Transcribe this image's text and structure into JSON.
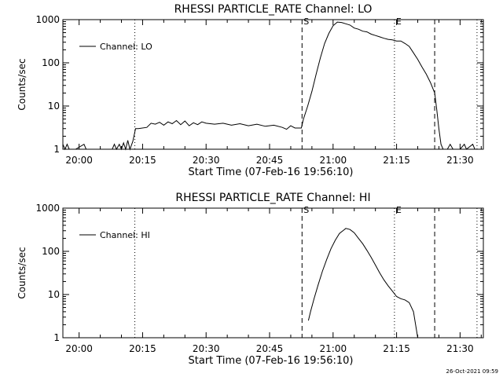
{
  "footer": {
    "date": "26-Oct-2021 09:59"
  },
  "chart_data": [
    {
      "type": "line",
      "title": "RHESSI PARTICLE_RATE Channel: LO",
      "xlabel": "Start Time (07-Feb-16 19:56:10)",
      "ylabel": "Counts/sec",
      "yscale": "log",
      "xlim": [
        "19:56:10",
        "21:35:30"
      ],
      "ylim": [
        1,
        1000
      ],
      "x_ticks": [
        "20:00",
        "20:15",
        "20:30",
        "20:45",
        "21:00",
        "21:15",
        "21:30"
      ],
      "y_ticks": [
        "1",
        "10",
        "100",
        "1000"
      ],
      "legend": {
        "position": "top-left",
        "entries": [
          "Channel: LO"
        ]
      },
      "markers": [
        {
          "time": "20:13:10",
          "style": "dotted",
          "label": ""
        },
        {
          "time": "20:52:40",
          "style": "dashed",
          "label": "S"
        },
        {
          "time": "21:14:30",
          "style": "dotted",
          "label": "E"
        },
        {
          "time": "21:24:00",
          "style": "dashed",
          "label": ""
        },
        {
          "time": "21:34:00",
          "style": "dotted",
          "label": ""
        }
      ],
      "series": [
        {
          "name": "Channel: LO",
          "points": [
            [
              "19:56:10",
              1.3
            ],
            [
              "19:56:40",
              1
            ],
            [
              "19:57:10",
              1.3
            ],
            [
              "19:57:40",
              1
            ],
            [
              "19:59:10",
              1
            ],
            [
              "20:01:10",
              1.3
            ],
            [
              "20:01:40",
              1
            ],
            [
              "20:07:50",
              1
            ],
            [
              "20:08:20",
              1.3
            ],
            [
              "20:08:50",
              1
            ],
            [
              "20:09:30",
              1.3
            ],
            [
              "20:10:00",
              1
            ],
            [
              "20:10:30",
              1.4
            ],
            [
              "20:11:00",
              1
            ],
            [
              "20:11:30",
              1.6
            ],
            [
              "20:12:00",
              1
            ],
            [
              "20:12:40",
              1.5
            ],
            [
              "20:13:20",
              3
            ],
            [
              "20:14:00",
              3
            ],
            [
              "20:16:00",
              3.2
            ],
            [
              "20:17:00",
              4
            ],
            [
              "20:18:00",
              3.8
            ],
            [
              "20:19:00",
              4.2
            ],
            [
              "20:20:00",
              3.6
            ],
            [
              "20:21:00",
              4.3
            ],
            [
              "20:22:00",
              3.9
            ],
            [
              "20:23:00",
              4.6
            ],
            [
              "20:24:00",
              3.7
            ],
            [
              "20:25:00",
              4.5
            ],
            [
              "20:26:00",
              3.5
            ],
            [
              "20:27:00",
              4.1
            ],
            [
              "20:28:00",
              3.7
            ],
            [
              "20:29:00",
              4.3
            ],
            [
              "20:30:00",
              4
            ],
            [
              "20:32:00",
              3.8
            ],
            [
              "20:34:00",
              4
            ],
            [
              "20:36:00",
              3.6
            ],
            [
              "20:38:00",
              3.9
            ],
            [
              "20:40:00",
              3.5
            ],
            [
              "20:42:00",
              3.8
            ],
            [
              "20:44:00",
              3.4
            ],
            [
              "20:46:00",
              3.6
            ],
            [
              "20:48:00",
              3.2
            ],
            [
              "20:49:00",
              2.9
            ],
            [
              "20:50:00",
              3.5
            ],
            [
              "20:51:00",
              3.1
            ],
            [
              "20:52:30",
              3.1
            ],
            [
              "20:53:00",
              5
            ],
            [
              "20:54:00",
              10
            ],
            [
              "20:55:00",
              22
            ],
            [
              "20:56:00",
              55
            ],
            [
              "20:57:00",
              130
            ],
            [
              "20:58:00",
              280
            ],
            [
              "20:59:00",
              480
            ],
            [
              "21:00:00",
              720
            ],
            [
              "21:01:00",
              880
            ],
            [
              "21:02:00",
              860
            ],
            [
              "21:03:00",
              800
            ],
            [
              "21:04:00",
              750
            ],
            [
              "21:05:00",
              640
            ],
            [
              "21:06:00",
              600
            ],
            [
              "21:07:00",
              540
            ],
            [
              "21:08:00",
              520
            ],
            [
              "21:09:00",
              460
            ],
            [
              "21:10:00",
              430
            ],
            [
              "21:11:00",
              400
            ],
            [
              "21:12:00",
              370
            ],
            [
              "21:13:00",
              350
            ],
            [
              "21:14:00",
              340
            ],
            [
              "21:15:00",
              320
            ],
            [
              "21:16:00",
              320
            ],
            [
              "21:17:00",
              280
            ],
            [
              "21:18:00",
              240
            ],
            [
              "21:19:00",
              170
            ],
            [
              "21:20:00",
              120
            ],
            [
              "21:21:00",
              80
            ],
            [
              "21:22:00",
              55
            ],
            [
              "21:23:00",
              35
            ],
            [
              "21:24:00",
              20
            ],
            [
              "21:24:30",
              8
            ],
            [
              "21:25:00",
              3
            ],
            [
              "21:25:30",
              1.3
            ],
            [
              "21:26:00",
              1
            ],
            [
              "21:27:00",
              1
            ],
            [
              "21:27:40",
              1.3
            ],
            [
              "21:28:20",
              1
            ],
            [
              "21:30:00",
              1
            ],
            [
              "21:31:00",
              1.3
            ],
            [
              "21:31:30",
              1
            ],
            [
              "21:33:00",
              1.3
            ],
            [
              "21:33:30",
              1
            ]
          ]
        }
      ]
    },
    {
      "type": "line",
      "title": "RHESSI PARTICLE_RATE Channel: HI",
      "xlabel": "Start Time (07-Feb-16 19:56:10)",
      "ylabel": "Counts/sec",
      "yscale": "log",
      "xlim": [
        "19:56:10",
        "21:35:30"
      ],
      "ylim": [
        1,
        1000
      ],
      "x_ticks": [
        "20:00",
        "20:15",
        "20:30",
        "20:45",
        "21:00",
        "21:15",
        "21:30"
      ],
      "y_ticks": [
        "1",
        "10",
        "100",
        "1000"
      ],
      "legend": {
        "position": "top-left",
        "entries": [
          "Channel: HI"
        ]
      },
      "markers": [
        {
          "time": "20:13:10",
          "style": "dotted",
          "label": ""
        },
        {
          "time": "20:52:40",
          "style": "dashed",
          "label": "S"
        },
        {
          "time": "21:14:30",
          "style": "dotted",
          "label": "E"
        },
        {
          "time": "21:24:00",
          "style": "dashed",
          "label": ""
        },
        {
          "time": "21:34:00",
          "style": "dotted",
          "label": ""
        }
      ],
      "series": [
        {
          "name": "Channel: HI",
          "points": [
            [
              "20:54:10",
              2.5
            ],
            [
              "20:54:40",
              4
            ],
            [
              "20:55:30",
              8
            ],
            [
              "20:56:30",
              17
            ],
            [
              "20:57:30",
              35
            ],
            [
              "20:58:30",
              65
            ],
            [
              "20:59:30",
              115
            ],
            [
              "21:00:30",
              180
            ],
            [
              "21:01:30",
              260
            ],
            [
              "21:02:30",
              310
            ],
            [
              "21:03:00",
              340
            ],
            [
              "21:04:00",
              320
            ],
            [
              "21:05:00",
              270
            ],
            [
              "21:06:00",
              200
            ],
            [
              "21:07:00",
              150
            ],
            [
              "21:08:00",
              105
            ],
            [
              "21:09:00",
              72
            ],
            [
              "21:10:00",
              48
            ],
            [
              "21:11:00",
              32
            ],
            [
              "21:12:00",
              22
            ],
            [
              "21:13:00",
              16
            ],
            [
              "21:14:00",
              12
            ],
            [
              "21:15:00",
              9
            ],
            [
              "21:16:00",
              8
            ],
            [
              "21:17:00",
              7.5
            ],
            [
              "21:18:00",
              6.5
            ],
            [
              "21:19:00",
              4
            ],
            [
              "21:19:30",
              2
            ],
            [
              "21:20:00",
              1
            ]
          ]
        }
      ]
    }
  ]
}
